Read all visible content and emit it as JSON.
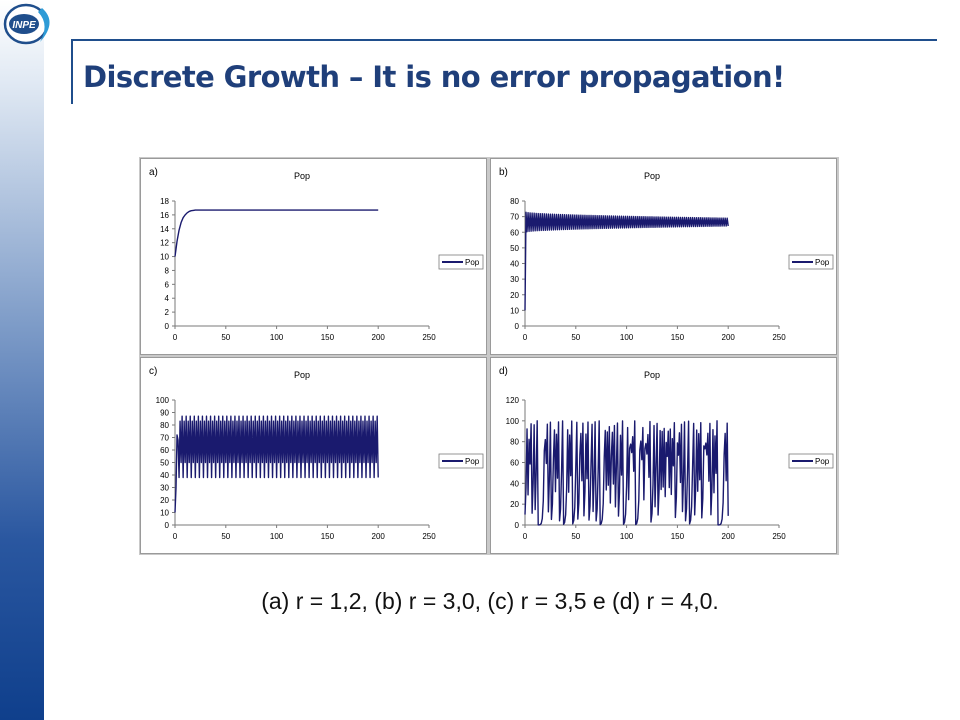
{
  "slide": {
    "title": "Discrete Growth – It is no error propagation!",
    "caption": "(a) r = 1,2, (b) r = 3,0, (c) r =  3,5 e (d) r = 4,0.",
    "logo_text": "INPE",
    "accent_color": "#1f3f7a",
    "sidebar_color": "#0f3f8c"
  },
  "chart_data": [
    {
      "panel_label": "a)",
      "type": "line",
      "title": "Pop",
      "legend": "Pop",
      "legend_position": "right",
      "xlim": [
        0,
        250
      ],
      "ylim": [
        0,
        18
      ],
      "xticks": [
        0,
        50,
        100,
        150,
        200,
        250
      ],
      "yticks": [
        0,
        2,
        4,
        6,
        8,
        10,
        12,
        14,
        16,
        18
      ],
      "grid": false,
      "color": "#1a1a6e",
      "series": [
        {
          "x": [
            0,
            2,
            4,
            6,
            8,
            10,
            12,
            14,
            16,
            18,
            20,
            25,
            30,
            40,
            60,
            100,
            150,
            200
          ],
          "y": [
            10,
            12.2,
            13.8,
            14.9,
            15.6,
            16.0,
            16.3,
            16.5,
            16.6,
            16.65,
            16.7,
            16.7,
            16.7,
            16.7,
            16.7,
            16.7,
            16.7,
            16.7
          ]
        }
      ]
    },
    {
      "panel_label": "b)",
      "type": "line",
      "title": "Pop",
      "legend": "Pop",
      "legend_position": "right",
      "xlim": [
        0,
        250
      ],
      "ylim": [
        0,
        80
      ],
      "xticks": [
        0,
        50,
        100,
        150,
        200,
        250
      ],
      "yticks": [
        0,
        10,
        20,
        30,
        40,
        50,
        60,
        70,
        80
      ],
      "grid": false,
      "color": "#1a1a6e",
      "series": [
        {
          "x": [
            0,
            1,
            2,
            3,
            4,
            5,
            8,
            10,
            20,
            40,
            60,
            100,
            150,
            200
          ],
          "y": [
            10,
            55,
            72,
            60,
            71,
            62,
            70,
            63,
            69,
            64,
            68,
            65,
            67,
            66
          ],
          "oscillation_band_start": [
            60,
            73
          ],
          "oscillation_band_end": [
            64,
            69
          ]
        }
      ]
    },
    {
      "panel_label": "c)",
      "type": "line",
      "title": "Pop",
      "legend": "Pop",
      "legend_position": "right",
      "xlim": [
        0,
        250
      ],
      "ylim": [
        0,
        100
      ],
      "xticks": [
        0,
        50,
        100,
        150,
        200,
        250
      ],
      "yticks": [
        0,
        10,
        20,
        30,
        40,
        50,
        60,
        70,
        80,
        90,
        100
      ],
      "grid": false,
      "color": "#1a1a6e",
      "series": [
        {
          "x": [
            0,
            1,
            2,
            3,
            200
          ],
          "y": [
            10,
            30,
            72,
            68,
            83
          ],
          "cycle_values": [
            38,
            83,
            50,
            87
          ],
          "period": 4
        }
      ]
    },
    {
      "panel_label": "d)",
      "type": "line",
      "title": "Pop",
      "legend": "Pop",
      "legend_position": "right",
      "xlim": [
        0,
        250
      ],
      "ylim": [
        0,
        120
      ],
      "xticks": [
        0,
        50,
        100,
        150,
        200,
        250
      ],
      "yticks": [
        0,
        20,
        40,
        60,
        80,
        100,
        120
      ],
      "grid": false,
      "color": "#1a1a6e",
      "series": [
        {
          "x_start": 0,
          "x_end": 200,
          "y_min": 0,
          "y_max": 100,
          "behavior": "chaotic"
        }
      ]
    }
  ]
}
